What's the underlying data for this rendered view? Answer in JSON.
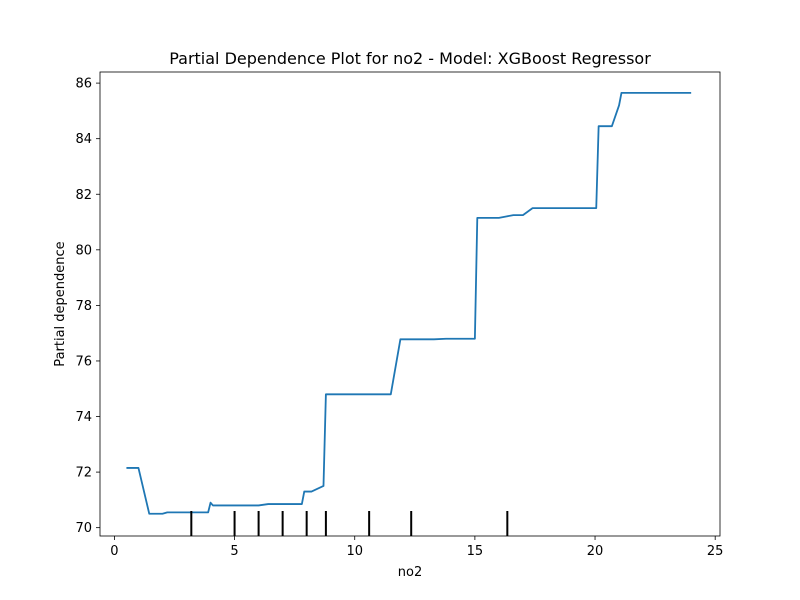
{
  "chart_data": {
    "type": "line",
    "title": "Partial Dependence Plot for no2 - Model: XGBoost Regressor",
    "xlabel": "no2",
    "ylabel": "Partial dependence",
    "xlim": [
      -0.6,
      25.2
    ],
    "ylim": [
      69.7,
      86.4
    ],
    "xticks": [
      0,
      5,
      10,
      15,
      20,
      25
    ],
    "yticks": [
      70,
      72,
      74,
      76,
      78,
      80,
      82,
      84,
      86
    ],
    "grid": false,
    "legend": "none",
    "series": [
      {
        "color": "#1f77b4",
        "x": [
          0.5,
          1.0,
          1.45,
          2.0,
          2.2,
          3.0,
          3.9,
          4.0,
          4.1,
          5.0,
          6.0,
          6.4,
          7.0,
          7.8,
          7.9,
          8.2,
          8.7,
          8.8,
          9.2,
          10.0,
          11.0,
          11.5,
          11.9,
          12.3,
          13.3,
          13.8,
          14.4,
          15.0,
          15.1,
          15.3,
          16.0,
          16.3,
          16.6,
          17.0,
          17.4,
          18.5,
          19.5,
          20.05,
          20.15,
          20.6,
          20.7,
          21.0,
          21.1,
          22.0,
          24.0
        ],
        "y": [
          72.15,
          72.15,
          70.5,
          70.5,
          70.55,
          70.55,
          70.55,
          70.9,
          70.8,
          70.8,
          70.8,
          70.85,
          70.85,
          70.85,
          71.3,
          71.3,
          71.5,
          74.8,
          74.8,
          74.8,
          74.8,
          74.8,
          76.78,
          76.78,
          76.78,
          76.8,
          76.8,
          76.8,
          81.15,
          81.15,
          81.15,
          81.2,
          81.25,
          81.25,
          81.5,
          81.5,
          81.5,
          81.5,
          84.45,
          84.45,
          84.45,
          85.2,
          85.65,
          85.65,
          85.65
        ]
      }
    ],
    "rug_deciles": [
      3.2,
      5.0,
      6.0,
      7.0,
      8.0,
      8.8,
      10.6,
      12.35,
      16.35
    ]
  }
}
